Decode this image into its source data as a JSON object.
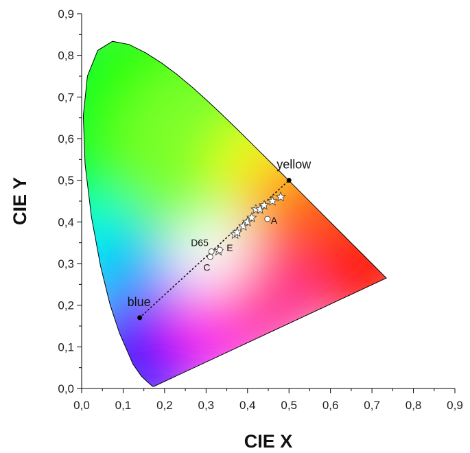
{
  "chart_data": {
    "type": "scatter",
    "xlabel": "CIE X",
    "ylabel": "CIE Y",
    "xlim": [
      0,
      0.9
    ],
    "ylim": [
      0,
      0.9
    ],
    "x_ticks": [
      "0,0",
      "0,1",
      "0,2",
      "0,3",
      "0,4",
      "0,5",
      "0,6",
      "0,7",
      "0,8",
      "0,9"
    ],
    "y_ticks": [
      "0,0",
      "0,1",
      "0,2",
      "0,3",
      "0,4",
      "0,5",
      "0,6",
      "0,7",
      "0,8",
      "0,9"
    ],
    "grid": false,
    "background": "CIE 1931 chromaticity diagram (horseshoe gamut fill)",
    "line_endpoints": [
      {
        "label": "blue",
        "x": 0.14,
        "y": 0.17
      },
      {
        "label": "yellow",
        "x": 0.5,
        "y": 0.5
      }
    ],
    "star_points": [
      {
        "x": 0.33,
        "y": 0.33
      },
      {
        "x": 0.37,
        "y": 0.37
      },
      {
        "x": 0.375,
        "y": 0.375
      },
      {
        "x": 0.39,
        "y": 0.39
      },
      {
        "x": 0.4,
        "y": 0.4
      },
      {
        "x": 0.41,
        "y": 0.41
      },
      {
        "x": 0.42,
        "y": 0.43
      },
      {
        "x": 0.43,
        "y": 0.43
      },
      {
        "x": 0.44,
        "y": 0.44
      },
      {
        "x": 0.46,
        "y": 0.45
      },
      {
        "x": 0.48,
        "y": 0.46
      }
    ],
    "reference_points": [
      {
        "label": "D65",
        "x": 0.313,
        "y": 0.329
      },
      {
        "label": "C",
        "x": 0.31,
        "y": 0.316
      },
      {
        "label": "E",
        "x": 0.333,
        "y": 0.333
      },
      {
        "label": "A",
        "x": 0.448,
        "y": 0.407
      }
    ]
  }
}
